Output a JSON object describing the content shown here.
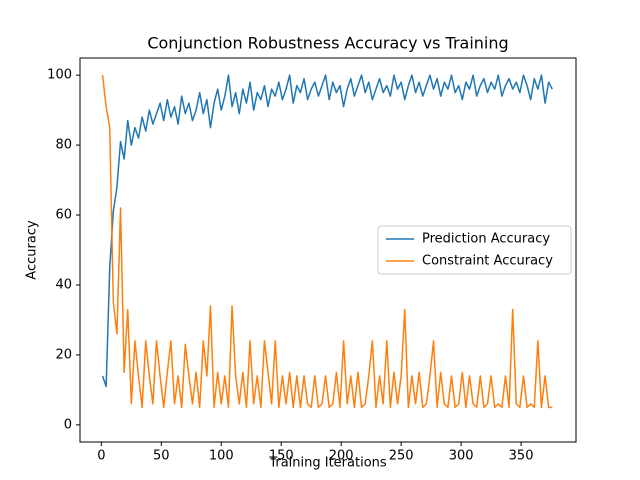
{
  "chart_data": {
    "type": "line",
    "title": "Conjunction Robustness Accuracy vs Training",
    "x_label": "Training Iterations",
    "y_label": "Accuracy",
    "x": [
      1,
      4,
      7,
      10,
      13,
      16,
      19,
      22,
      25,
      28,
      31,
      34,
      37,
      40,
      43,
      46,
      49,
      52,
      55,
      58,
      61,
      64,
      67,
      70,
      73,
      76,
      79,
      82,
      85,
      88,
      91,
      94,
      97,
      100,
      103,
      106,
      109,
      112,
      115,
      118,
      121,
      124,
      127,
      130,
      133,
      136,
      139,
      142,
      145,
      148,
      151,
      154,
      157,
      160,
      163,
      166,
      169,
      172,
      175,
      178,
      181,
      184,
      187,
      190,
      193,
      196,
      199,
      202,
      205,
      208,
      211,
      214,
      217,
      220,
      223,
      226,
      229,
      232,
      235,
      238,
      241,
      244,
      247,
      250,
      253,
      256,
      259,
      262,
      265,
      268,
      271,
      274,
      277,
      280,
      283,
      286,
      289,
      292,
      295,
      298,
      301,
      304,
      307,
      310,
      313,
      316,
      319,
      322,
      325,
      328,
      331,
      334,
      337,
      340,
      343,
      346,
      349,
      352,
      355,
      358,
      361,
      364,
      367,
      370,
      373,
      376
    ],
    "series": [
      {
        "name": "Prediction Accuracy",
        "color": "#1f77b4",
        "values": [
          14,
          11,
          45,
          61,
          68,
          81,
          76,
          87,
          80,
          85,
          82,
          88,
          84,
          90,
          86,
          89,
          92,
          87,
          93,
          88,
          91,
          86,
          94,
          89,
          92,
          87,
          90,
          95,
          89,
          93,
          85,
          92,
          96,
          90,
          94,
          100,
          91,
          95,
          89,
          96,
          92,
          98,
          90,
          95,
          93,
          97,
          91,
          96,
          94,
          98,
          93,
          96,
          100,
          92,
          97,
          95,
          99,
          93,
          96,
          98,
          94,
          97,
          100,
          93,
          98,
          95,
          97,
          91,
          96,
          99,
          94,
          97,
          100,
          95,
          98,
          93,
          96,
          99,
          95,
          97,
          94,
          100,
          96,
          98,
          93,
          97,
          100,
          95,
          98,
          94,
          97,
          100,
          96,
          99,
          94,
          98,
          96,
          100,
          95,
          97,
          93,
          98,
          96,
          100,
          94,
          97,
          99,
          95,
          98,
          96,
          100,
          94,
          97,
          99,
          96,
          98,
          95,
          100,
          97,
          93,
          99,
          96,
          100,
          92,
          98,
          96
        ]
      },
      {
        "name": "Constraint Accuracy",
        "color": "#ff7f0e",
        "values": [
          100,
          91,
          85,
          35,
          26,
          62,
          15,
          33,
          6,
          24,
          14,
          5,
          24,
          14,
          6,
          24,
          14,
          5,
          15,
          24,
          6,
          14,
          5,
          23,
          14,
          6,
          15,
          5,
          24,
          14,
          34,
          5,
          15,
          6,
          14,
          5,
          34,
          14,
          6,
          15,
          5,
          24,
          6,
          14,
          5,
          24,
          15,
          6,
          24,
          5,
          14,
          6,
          15,
          5,
          14,
          5,
          14,
          6,
          5,
          14,
          5,
          6,
          14,
          5,
          6,
          15,
          5,
          24,
          6,
          14,
          5,
          15,
          5,
          6,
          14,
          24,
          5,
          14,
          6,
          24,
          5,
          15,
          6,
          14,
          33,
          5,
          14,
          6,
          15,
          5,
          6,
          14,
          24,
          5,
          15,
          6,
          5,
          14,
          5,
          6,
          15,
          5,
          14,
          6,
          5,
          14,
          5,
          6,
          14,
          5,
          6,
          5,
          14,
          5,
          33,
          6,
          5,
          14,
          5,
          6,
          5,
          24,
          5,
          14,
          5,
          5
        ]
      }
    ],
    "xlim": [
      -17.8,
      395.8
    ],
    "ylim": [
      -4.9,
      104.9
    ],
    "xticks": [
      0,
      50,
      100,
      150,
      200,
      250,
      300,
      350
    ],
    "yticks": [
      0,
      20,
      40,
      60,
      80,
      100
    ],
    "legend": "center right"
  }
}
